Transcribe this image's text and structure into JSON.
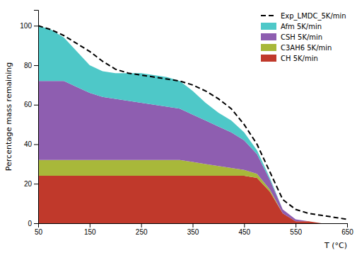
{
  "chart_data": {
    "type": "area",
    "stacked": true,
    "xlabel": "T (°C)",
    "ylabel": "Percentage mass remaining",
    "x": [
      50,
      75,
      100,
      125,
      150,
      175,
      200,
      225,
      250,
      275,
      300,
      325,
      350,
      375,
      400,
      425,
      450,
      475,
      500,
      525,
      550,
      575,
      600,
      625,
      650
    ],
    "series": [
      {
        "name": "CH 5K/min",
        "type": "area",
        "color": "#c0392b",
        "values": [
          24,
          24,
          24,
          24,
          24,
          24,
          24,
          24,
          24,
          24,
          24,
          24,
          24,
          24,
          24,
          24,
          24,
          23,
          16,
          5,
          1,
          1,
          0,
          0,
          0
        ]
      },
      {
        "name": "C3AH6 5K/min",
        "type": "area",
        "color": "#a8b83a",
        "values": [
          8,
          8,
          8,
          8,
          8,
          8,
          8,
          8,
          8,
          8,
          8,
          8,
          7,
          6,
          5,
          4,
          3,
          2,
          1,
          0,
          0,
          0,
          0,
          0,
          0
        ]
      },
      {
        "name": "CSH 5K/min",
        "type": "area",
        "color": "#8e5eb0",
        "values": [
          40,
          40,
          40,
          37,
          34,
          32,
          31,
          30,
          29,
          28,
          27,
          26,
          24,
          22,
          20,
          18,
          15,
          10,
          5,
          2,
          1,
          0,
          0,
          0,
          0
        ]
      },
      {
        "name": "Afm 5K/min",
        "type": "area",
        "color": "#4ec8c8",
        "values": [
          28,
          26,
          22,
          18,
          14,
          13,
          13,
          14,
          15,
          15,
          15,
          14,
          12,
          9,
          7,
          6,
          4,
          2,
          1,
          0,
          0,
          0,
          0,
          0,
          0
        ]
      },
      {
        "name": "Exp_LMDC_5K/min",
        "type": "line",
        "line_style": "dashed",
        "color": "#000000",
        "values": [
          100,
          98,
          95,
          91,
          87,
          82,
          78,
          76,
          75,
          74,
          73,
          72,
          70,
          67,
          63,
          58,
          50,
          40,
          26,
          12,
          7,
          5,
          4,
          3,
          2
        ]
      }
    ],
    "xlim": [
      50,
      650
    ],
    "ylim": [
      0,
      108
    ],
    "xticks": [
      50,
      150,
      250,
      350,
      450,
      550,
      650
    ],
    "yticks": [
      0,
      20,
      40,
      60,
      80,
      100
    ],
    "grid": false,
    "legend": "upper right"
  }
}
